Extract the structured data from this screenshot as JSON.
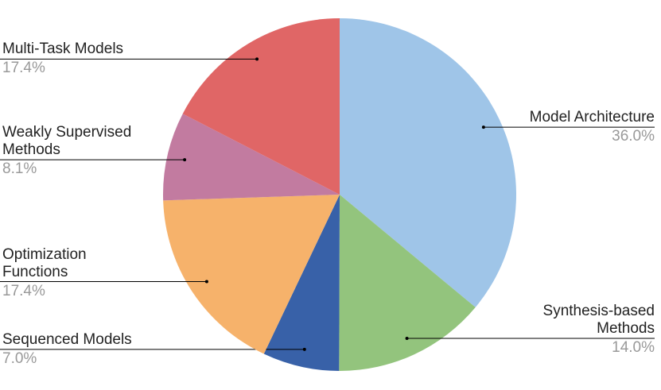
{
  "chart_data": {
    "type": "pie",
    "categories": [
      "Model Architecture",
      "Synthesis-based Methods",
      "Sequenced Models",
      "Optimization Functions",
      "Weakly Supervised Methods",
      "Multi-Task Models"
    ],
    "values": [
      36.0,
      14.0,
      7.0,
      17.4,
      8.1,
      17.4
    ],
    "value_labels": [
      "36.0%",
      "14.0%",
      "7.0%",
      "17.4%",
      "8.1%",
      "17.4%"
    ],
    "colors": [
      "#9fc5e8",
      "#93c47d",
      "#3861a8",
      "#f6b26b",
      "#c27ba0",
      "#e06666"
    ]
  }
}
